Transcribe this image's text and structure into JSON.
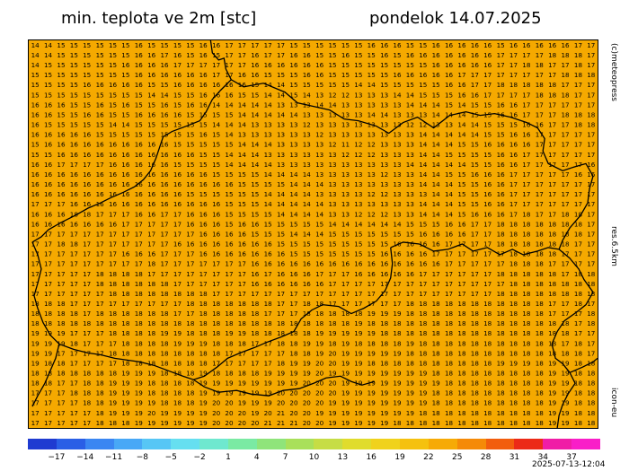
{
  "header": {
    "title": "min. teplota ve 2m [stc]",
    "date": "pondelok 14.07.2025"
  },
  "side_labels": {
    "credit": "(c)meteopress",
    "resolution": "res.6.5km",
    "model": "icon-eu"
  },
  "timestamp": "2025-07-13-12:04",
  "colors": {
    "map_fill": "#f5a900",
    "map_fill_hot": "#f3a000",
    "border_line": "#000000",
    "number_text": "#000000"
  },
  "legend": {
    "labels": [
      "−17",
      "−14",
      "−11",
      "−8",
      "−5",
      "−2",
      "1",
      "4",
      "7",
      "10",
      "13",
      "16",
      "19",
      "22",
      "25",
      "28",
      "31",
      "34",
      "37"
    ],
    "colors": [
      "#1f3bd1",
      "#2a5fe6",
      "#3a86f2",
      "#48a8f6",
      "#57c6f5",
      "#66dff0",
      "#6fe8cf",
      "#7aeaa3",
      "#8fe47a",
      "#a9e05a",
      "#c6dd45",
      "#e0dc2c",
      "#f0d21c",
      "#f5c10f",
      "#f6aa06",
      "#f58a07",
      "#f25d0d",
      "#ec2a17",
      "#f01da6",
      "#f91ec8"
    ]
  },
  "map": {
    "rows": [
      "14 14 15 15 15 15 15 15 16 15 15 15 15 16 16 17 17 17 17 17 15 15 15 15 15 15 16 16 16 15 15 16 16 16 16 16 15 16 16 16 16 16 17 17",
      "14 14 15 15 15 15 15 15 16 16 17 16 15 16 15 17 17 16 17 17 16 16 15 15 16 15 15 16 15 16 16 16 16 16 16 16 17 17 17 17 18 18 18 17",
      "14 15 15 15 15 15 15 16 16 16 16 17 17 17 17 17 17 16 16 16 16 16 16 15 15 15 15 15 15 15 15 16 16 16 16 16 17 17 18 18 17 17 18 17",
      "15 15 15 15 15 15 15 15 16 16 16 16 16 16 17 17 16 16 15 15 15 16 16 15 15 15 15 15 16 16 16 16 16 17 17 17 17 17 17 17 17 18 18 18",
      "15 15 15 15 16 16 16 16 16 15 15 16 16 16 16 16 16 15 14 14 15 15 15 15 15 14 14 15 15 15 15 15 16 16 17 17 18 18 18 18 18 17 17 17",
      "15 15 15 15 15 15 15 15 15 14 14 15 15 16 16 16 15 15 14 14 15 14 13 12 12 13 13 13 14 14 15 15 15 16 16 17 17 17 17 18 18 18 17 17",
      "16 16 16 15 15 16 15 16 15 15 16 15 16 16 14 14 14 14 14 13 13 13 14 14 13 13 13 13 13 14 14 14 15 14 15 15 16 16 17 17 17 17 17 17",
      "16 16 15 15 16 16 15 15 16 16 16 16 15 15 15 15 14 14 14 14 14 13 13 13 13 13 14 14 13 13 13 14 14 14 15 15 16 16 17 17 17 18 18 18",
      "16 15 15 15 15 15 14 14 15 15 15 15 15 15 14 14 14 13 13 13 13 12 13 13 13 13 13 13 13 12 12 13 13 14 14 15 15 15 16 16 17 17 18 18",
      "16 16 16 16 16 15 15 15 15 15 15 15 15 16 15 14 13 13 13 13 13 13 12 13 13 13 13 13 13 13 14 14 14 14 14 15 15 16 16 17 17 17 17 17",
      "15 16 16 16 16 16 16 16 16 16 16 15 15 15 15 15 14 14 14 13 13 13 13 12 11 12 12 13 13 13 14 14 14 15 15 16 16 16 16 17 17 17 17 17",
      "15 15 16 16 16 16 16 16 16 16 16 16 16 15 15 14 14 14 13 13 13 13 13 13 12 12 12 13 13 13 14 14 15 15 15 15 16 16 17 17 17 17 17 17",
      "16 16 17 17 17 17 16 16 16 16 16 15 15 15 15 14 14 14 14 13 13 13 13 13 13 13 13 13 13 14 14 14 14 14 15 15 16 16 17 17 17 17 17 16",
      "16 16 16 16 16 16 16 16 16 16 16 16 16 16 15 15 15 15 14 14 14 14 13 13 13 13 13 12 13 13 14 14 15 15 16 16 16 17 17 17 17 17 16 16",
      "16 16 16 16 16 16 16 16 16 16 16 16 16 16 16 16 15 15 15 15 14 14 14 13 13 13 13 13 13 13 14 14 14 15 15 16 16 17 17 17 17 17 17 17",
      "16 16 16 16 16 16 16 16 16 16 16 16 15 15 15 15 15 15 14 14 14 14 13 13 13 13 12 12 13 13 13 14 14 15 15 16 16 17 17 17 17 17 17 17",
      "17 17 17 16 16 16 16 16 16 16 16 16 16 16 16 15 15 15 14 14 14 14 14 13 13 13 13 13 13 13 14 14 14 15 15 16 16 17 17 17 17 17 17 17",
      "16 16 16 18 18 17 17 17 16 16 17 17 16 16 16 15 15 15 15 14 14 14 14 13 13 12 12 12 13 13 14 14 14 15 16 16 16 17 18 17 17 18 18 17",
      "16 16 16 16 16 16 16 17 17 17 17 17 16 16 16 15 16 16 15 15 15 15 15 14 14 14 14 14 14 15 15 15 16 16 17 17 18 18 18 18 18 18 18 17",
      "17 17 17 17 17 17 17 17 17 17 17 17 17 16 16 16 16 15 15 15 14 14 14 15 15 15 15 15 15 15 16 16 16 16 17 17 18 18 18 18 18 18 18 17",
      "17 17 18 18 17 17 17 17 17 17 17 16 16 16 16 16 16 16 16 15 15 15 15 15 15 15 15 15 16 16 16 16 17 17 17 17 18 18 18 18 18 18 17 17",
      "17 17 17 17 17 17 17 16 16 16 17 17 17 16 16 16 16 16 16 16 15 15 15 15 15 15 15 16 16 16 16 17 17 17 17 17 17 18 18 18 18 17 17 17",
      "17 17 17 17 17 17 17 17 17 18 17 17 17 17 17 17 17 16 16 16 16 16 16 16 16 16 16 16 16 16 16 16 17 17 17 17 17 18 18 18 17 17 17 17",
      "17 17 17 17 17 18 18 18 18 17 17 17 17 17 17 17 17 16 17 16 16 16 17 17 17 16 16 16 16 16 17 17 17 17 17 17 18 18 18 18 18 17 18 18",
      "17 17 17 17 17 18 18 18 18 18 18 17 17 17 17 17 17 16 16 16 16 16 16 17 17 17 17 17 17 17 17 17 17 17 17 17 17 18 18 18 18 18 18 18",
      "17 17 17 17 17 17 18 18 18 18 18 18 18 18 17 17 17 17 17 17 17 17 17 17 17 17 17 17 17 17 17 17 17 17 17 17 18 18 18 18 18 18 18 18",
      "18 18 18 17 17 17 17 17 17 17 17 17 18 18 18 18 18 18 18 17 17 18 18 17 17 17 17 17 17 18 18 18 18 18 18 18 18 18 18 18 17 17 18 17",
      "18 18 18 18 17 18 18 18 18 18 18 17 17 18 18 18 18 18 17 17 17 18 18 18 18 18 19 19 19 18 18 18 18 18 18 18 18 18 18 18 17 17 17 18",
      "18 18 18 18 18 18 18 18 18 18 18 18 18 18 18 18 18 18 18 18 18 18 18 18 18 19 18 18 18 18 18 18 18 18 18 18 18 18 18 18 18 18 17 18",
      "19 19 19 17 17 17 18 18 18 18 19 19 18 18 18 19 19 18 18 18 18 18 19 19 19 19 19 18 18 18 18 18 18 18 18 18 18 18 18 18 18 18 17 17",
      "19 19 19 18 17 17 17 18 18 18 18 19 19 19 18 18 18 17 17 18 18 19 19 18 19 18 18 18 18 19 18 18 18 18 18 18 18 18 18 18 18 17 18 17",
      "19 19 17 17 17 17 18 18 18 18 18 18 18 18 18 17 17 17 17 17 18 18 19 20 19 19 19 19 19 18 18 18 18 18 18 18 18 18 18 18 18 18 18 17",
      "19 18 18 17 17 17 17 18 18 18 18 18 18 18 17 17 17 17 17 18 19 19 20 20 19 19 18 18 18 18 18 18 18 18 18 18 19 19 19 18 19 19 18 18",
      "18 18 18 18 18 18 18 19 19 19 18 18 18 19 18 18 18 18 19 19 19 19 20 19 19 19 19 19 19 19 19 18 18 18 18 18 18 18 18 18 19 19 18 18",
      "18 18 17 17 18 18 19 19 19 18 18 18 18 19 19 19 19 19 19 19 19 20 20 20 19 19 19 19 19 19 19 19 18 18 18 18 18 18 18 18 19 19 18 18",
      "17 17 17 18 18 18 19 19 19 18 18 18 18 19 19 19 19 19 19 20 20 20 20 20 19 19 19 19 19 19 19 18 18 18 18 18 18 18 18 18 19 19 18 18",
      "17 17 17 17 18 18 19 19 19 19 18 18 18 19 20 20 19 19 19 20 20 20 20 19 19 19 19 19 19 19 19 18 18 18 18 18 18 18 18 18 19 19 18 18",
      "17 17 17 17 17 18 19 19 19 20 19 19 19 19 20 20 20 19 20 21 20 20 19 19 19 19 19 19 19 19 18 18 18 18 18 18 18 18 18 18 19 19 18 18",
      "17 17 17 17 17 18 18 18 19 19 19 19 19 19 20 20 20 20 21 21 21 20 20 19 19 19 19 19 18 18 18 18 18 18 18 18 18 18 18 18 19 19 18 18"
    ]
  }
}
